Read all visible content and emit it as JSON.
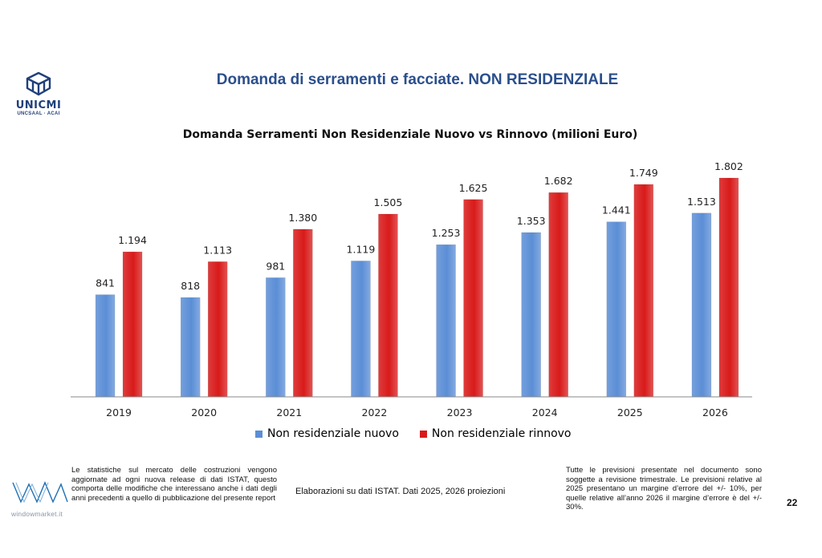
{
  "logo_brand": "UNICMI",
  "logo_sub": "UNCSAAL · ACAI",
  "page_title": "Domanda di serramenti e facciate. NON RESIDENZIALE",
  "colors": {
    "nuovo": "#5b8ed6",
    "rinnovo": "#d91a1a",
    "title": "#2b4f8c"
  },
  "chart_data": {
    "type": "bar",
    "title": "Domanda Serramenti Non Residenziale Nuovo vs Rinnovo (milioni Euro)",
    "categories": [
      "2019",
      "2020",
      "2021",
      "2022",
      "2023",
      "2024",
      "2025",
      "2026"
    ],
    "series": [
      {
        "name": "Non residenziale nuovo",
        "values": [
          841,
          818,
          981,
          1119,
          1253,
          1353,
          1441,
          1513
        ],
        "labels": [
          "841",
          "818",
          "981",
          "1.119",
          "1.253",
          "1.353",
          "1.441",
          "1.513"
        ]
      },
      {
        "name": "Non residenziale rinnovo",
        "values": [
          1194,
          1113,
          1380,
          1505,
          1625,
          1682,
          1749,
          1802
        ],
        "labels": [
          "1.194",
          "1.113",
          "1.380",
          "1.505",
          "1.625",
          "1.682",
          "1.749",
          "1.802"
        ]
      }
    ],
    "xlabel": "",
    "ylabel": "",
    "ylim": [
      0,
      1900
    ],
    "grid": false,
    "legend": "bottom"
  },
  "footer": {
    "left_text": "Le statistiche sul mercato delle costruzioni vengono aggiornate ad ogni nuova release di dati ISTAT, questo comporta delle modifiche che interessano anche i dati degli anni precedenti a quello di pubblicazione del presente report",
    "center_text": "Elaborazioni su dati ISTAT. Dati 2025, 2026 proiezioni",
    "right_text": "Tutte le previsioni presentate nel documento sono soggette a revisione trimestrale. Le previsioni relative al 2025 presentano un margine d’errore del +/- 10%, per quelle relative all’anno 2026 il margine d’errore è del +/- 30%.",
    "page_number": "22",
    "wm_logo_text": "windowmarket.it"
  }
}
